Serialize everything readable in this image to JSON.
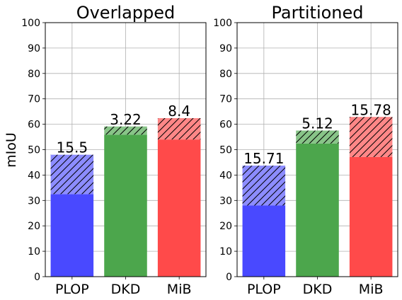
{
  "ylabel": "mIoU",
  "colors": {
    "blue": "#4949ff",
    "green": "#4ca64c",
    "red": "#ff4a4a",
    "blue_hatch": "#8c8cff",
    "green_hatch": "#88c488",
    "red_hatch": "#ff8787",
    "grid": "#b0b0b0"
  },
  "chart_data": [
    {
      "type": "bar",
      "title": "Overlapped",
      "categories": [
        "PLOP",
        "DKD",
        "MiB"
      ],
      "ylabel": "mIoU",
      "ylim": [
        0,
        100
      ],
      "yticks": [
        "0",
        "10",
        "20",
        "30",
        "40",
        "50",
        "60",
        "70",
        "80",
        "90",
        "100"
      ],
      "grid": true,
      "series": [
        {
          "values": [
            32.5,
            55.9,
            54.0
          ]
        },
        {
          "values": [
            15.5,
            3.22,
            8.4
          ],
          "hatched": true
        }
      ],
      "data_labels": [
        "15.5",
        "3.22",
        "8.4"
      ]
    },
    {
      "type": "bar",
      "title": "Partitioned",
      "categories": [
        "PLOP",
        "DKD",
        "MiB"
      ],
      "ylim": [
        0,
        100
      ],
      "yticks": [
        "0",
        "10",
        "20",
        "30",
        "40",
        "50",
        "60",
        "70",
        "80",
        "90",
        "100"
      ],
      "grid": true,
      "series": [
        {
          "values": [
            28.0,
            52.4,
            47.1
          ]
        },
        {
          "values": [
            15.71,
            5.12,
            15.78
          ],
          "hatched": true
        }
      ],
      "data_labels": [
        "15.71",
        "5.12",
        "15.78"
      ]
    }
  ]
}
